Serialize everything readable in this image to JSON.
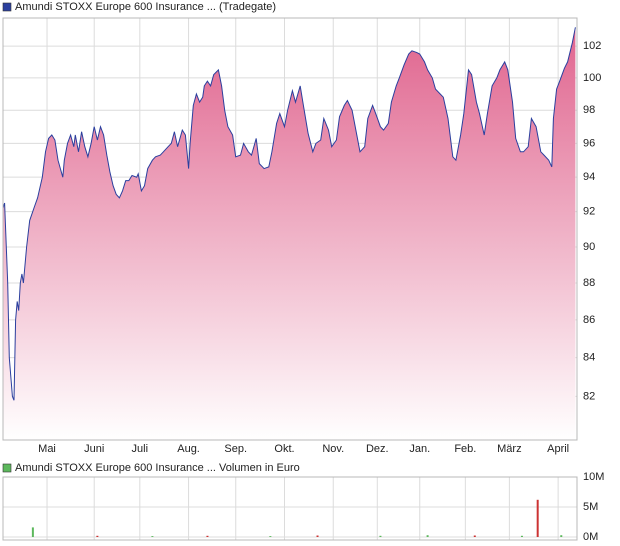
{
  "chart_data": [
    {
      "type": "area",
      "log_scale": true,
      "grid": true,
      "area_color": "#e0648e",
      "x": [
        0,
        1,
        3,
        4,
        6,
        7,
        8,
        9,
        10,
        11,
        12,
        13,
        15,
        17,
        20,
        22,
        25,
        27,
        29,
        31,
        33,
        35,
        38,
        39,
        41,
        43,
        45,
        46,
        48,
        50,
        52,
        54,
        56,
        58,
        60,
        62,
        64,
        66,
        68,
        70,
        72,
        74,
        76,
        78,
        80,
        82,
        85,
        86,
        88,
        90,
        92,
        95,
        97,
        100,
        102,
        105,
        107,
        109,
        111,
        114,
        116,
        118,
        119,
        121,
        123,
        125,
        127,
        128,
        130,
        132,
        134,
        137,
        139,
        141,
        143,
        146,
        148,
        151,
        153,
        156,
        158,
        161,
        163,
        166,
        169,
        171,
        174,
        176,
        179,
        181,
        184,
        186,
        189,
        191,
        194,
        197,
        199,
        202,
        204,
        207,
        209,
        212,
        214,
        217,
        219,
        222,
        225,
        227,
        230,
        232,
        235,
        237,
        240,
        242,
        245,
        247,
        250,
        252,
        255,
        258,
        260,
        263,
        265,
        268,
        270,
        273,
        275,
        278,
        280,
        283,
        286,
        288,
        291,
        293,
        296,
        298,
        301,
        303,
        306,
        308,
        311,
        314,
        316,
        319,
        321,
        324,
        326,
        329,
        331,
        334,
        336,
        339,
        342,
        344,
        347,
        349,
        350,
        352,
        354,
        357,
        359,
        362,
        364
      ],
      "series": [
        {
          "name": "Amundi STOXX Europe 600 Insurance ... (Tradegate)",
          "color": "#2b3f9e",
          "values": [
            92.2,
            92.5,
            88,
            84,
            82,
            81.8,
            86,
            87,
            86.5,
            88,
            88.5,
            88,
            90,
            91.5,
            92.3,
            92.8,
            94,
            95.5,
            96.3,
            96.5,
            96.2,
            95,
            94,
            95,
            96,
            96.5,
            95.8,
            96.5,
            95.5,
            96.7,
            95.8,
            95.2,
            96,
            97,
            96.2,
            97,
            96.5,
            95.3,
            94.3,
            93.5,
            93,
            92.8,
            93.2,
            93.8,
            93.8,
            94.1,
            94,
            94.2,
            93.2,
            93.5,
            94.5,
            95,
            95.2,
            95.3,
            95.5,
            95.8,
            96,
            96.7,
            95.8,
            96.8,
            96.5,
            94.5,
            96,
            98.3,
            99,
            98.5,
            98.8,
            99.5,
            99.8,
            99.5,
            100.2,
            100.5,
            99.5,
            98,
            97,
            96.5,
            95.2,
            95.3,
            96,
            95.5,
            95.3,
            96.3,
            94.8,
            94.5,
            94.6,
            95.5,
            97.2,
            97.8,
            97,
            98,
            99.2,
            98.5,
            99.5,
            98.3,
            96.6,
            95.5,
            96,
            96.2,
            97.5,
            96.8,
            95.8,
            96.2,
            97.6,
            98.3,
            98.6,
            98,
            96.5,
            95.5,
            95.8,
            97.5,
            98.3,
            97.8,
            97,
            96.8,
            97.2,
            98.5,
            99.5,
            100,
            100.8,
            101.5,
            101.7,
            101.6,
            101.5,
            101,
            100.5,
            100,
            99.3,
            99,
            98.8,
            97.5,
            95.2,
            95,
            96.5,
            97.8,
            100.5,
            100.2,
            98.5,
            97.8,
            96.5,
            97.8,
            99.5,
            100,
            100.5,
            101,
            100.5,
            98.5,
            96.3,
            95.5,
            95.5,
            95.8,
            97.5,
            97,
            95.5,
            95.3,
            95,
            94.6,
            97.5,
            99.3,
            99.8,
            100.6,
            101,
            102.2,
            103.2
          ]
        }
      ],
      "xlim": [
        0,
        365
      ],
      "xticks": [
        {
          "value": 28,
          "label": "Mai"
        },
        {
          "value": 58,
          "label": "Juni"
        },
        {
          "value": 87,
          "label": "Juli"
        },
        {
          "value": 118,
          "label": "Aug."
        },
        {
          "value": 148,
          "label": "Sep."
        },
        {
          "value": 179,
          "label": "Okt."
        },
        {
          "value": 210,
          "label": "Nov."
        },
        {
          "value": 238,
          "label": "Dez."
        },
        {
          "value": 265,
          "label": "Jan."
        },
        {
          "value": 294,
          "label": "Feb."
        },
        {
          "value": 322,
          "label": "März"
        },
        {
          "value": 353,
          "label": "April"
        }
      ],
      "ylim": [
        79.8,
        103.8
      ],
      "yticks": [
        82,
        84,
        86,
        88,
        90,
        92,
        94,
        96,
        98,
        100,
        102
      ]
    },
    {
      "type": "bar",
      "grid": true,
      "x": [
        19,
        60,
        95,
        130,
        170,
        200,
        240,
        270,
        300,
        330,
        340,
        355
      ],
      "series": [
        {
          "name": "Amundi STOXX Europe 600 Insurance ... Volumen in Euro",
          "color": "#5cb85c",
          "values": [
            1600000,
            200000,
            150000,
            200000,
            150000,
            250000,
            200000,
            300000,
            250000,
            200000,
            6200000,
            300000
          ],
          "colors": [
            "#5cb85c",
            "#cc3333",
            "#5cb85c",
            "#cc3333",
            "#5cb85c",
            "#cc3333",
            "#5cb85c",
            "#5cb85c",
            "#cc3333",
            "#5cb85c",
            "#cc3333",
            "#5cb85c"
          ]
        }
      ],
      "xlim": [
        0,
        365
      ],
      "ylim": [
        0,
        10000000
      ],
      "yticks": [
        {
          "value": 0,
          "label": "0M"
        },
        {
          "value": 5000000,
          "label": "5M"
        },
        {
          "value": 10000000,
          "label": "10M"
        }
      ]
    }
  ]
}
